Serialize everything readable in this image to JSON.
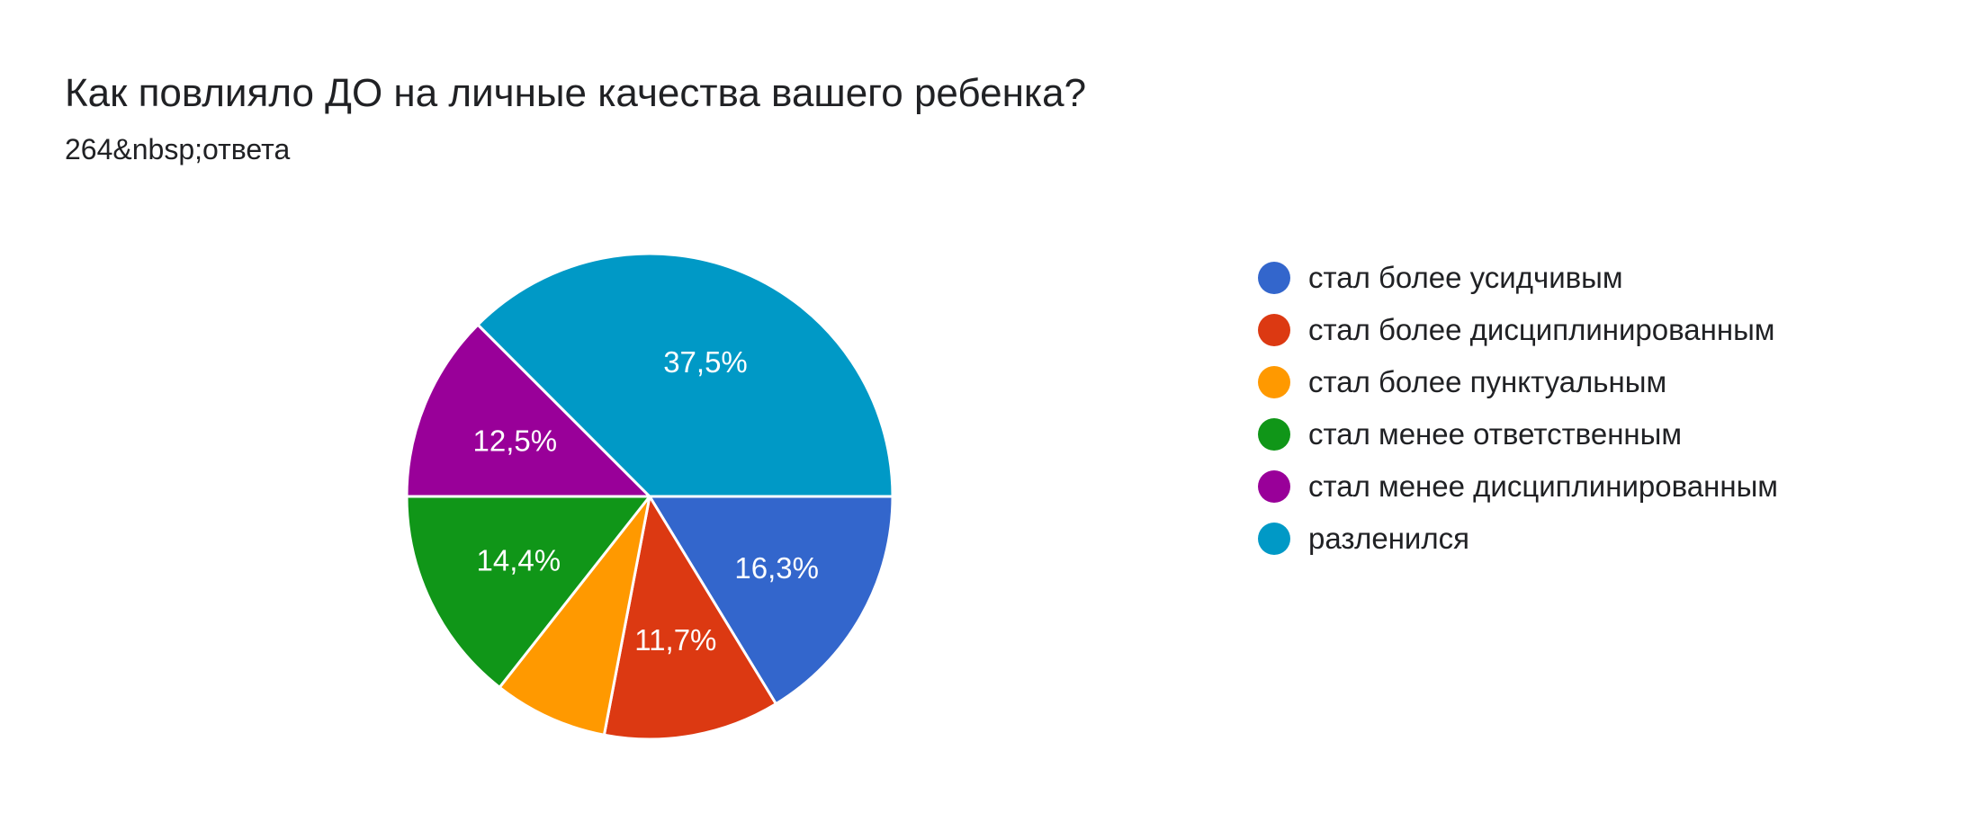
{
  "header": {
    "title": "Как повлияло ДО на личные качества вашего ребенка?",
    "responses": "264&nbsp;ответа"
  },
  "chart_data": {
    "type": "pie",
    "title": "Как повлияло ДО на личные качества вашего ребенка?",
    "legend_position": "right",
    "slices": [
      {
        "label": "стал более усидчивым",
        "value": 16.3,
        "value_label": "16,3%",
        "color": "#3366cc"
      },
      {
        "label": "стал более дисциплинированным",
        "value": 11.7,
        "value_label": "11,7%",
        "color": "#dc3912"
      },
      {
        "label": "стал более пунктуальным",
        "value": 7.6,
        "value_label": "",
        "color": "#ff9900"
      },
      {
        "label": "стал менее ответственным",
        "value": 14.4,
        "value_label": "14,4%",
        "color": "#109618"
      },
      {
        "label": "стал менее дисциплинированным",
        "value": 12.5,
        "value_label": "12,5%",
        "color": "#990099"
      },
      {
        "label": "разленился",
        "value": 37.5,
        "value_label": "37,5%",
        "color": "#0099c6"
      }
    ]
  }
}
